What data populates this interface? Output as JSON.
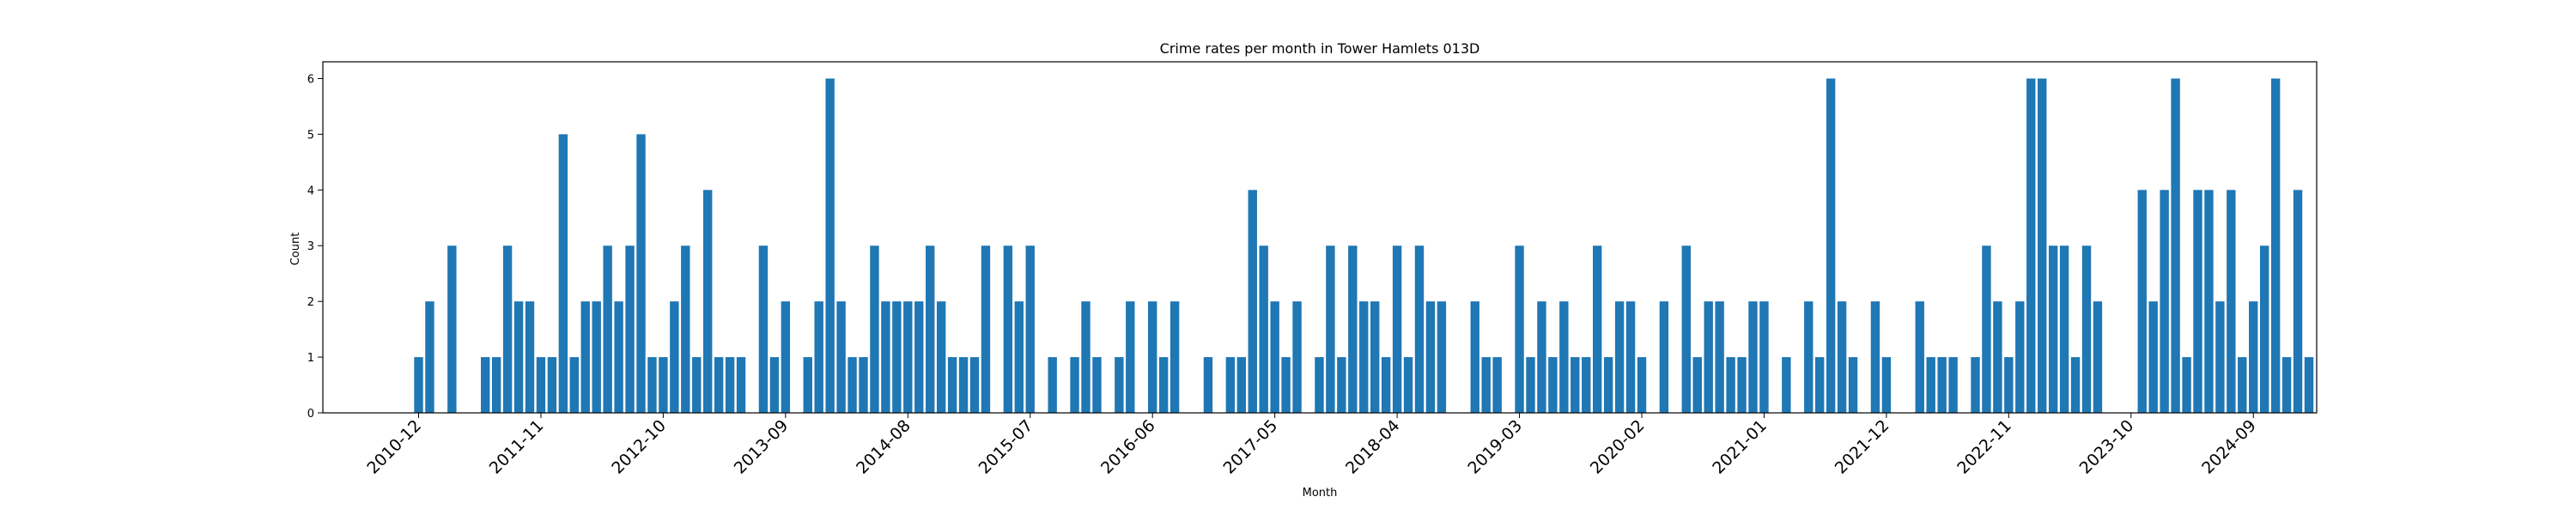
{
  "chart_data": {
    "type": "bar",
    "title": "Crime rates per month in Tower Hamlets 013D",
    "xlabel": "Month",
    "ylabel": "Count",
    "ylim": [
      0,
      6.3
    ],
    "yticks": [
      0,
      1,
      2,
      3,
      4,
      5,
      6
    ],
    "grid": false,
    "bar_color": "#1f77b4",
    "start_month": "2010-12",
    "xticks": [
      "2010-12",
      "2011-11",
      "2012-10",
      "2013-09",
      "2014-08",
      "2015-07",
      "2016-06",
      "2017-05",
      "2018-04",
      "2019-03",
      "2020-02",
      "2021-01",
      "2021-12",
      "2022-11",
      "2023-10",
      "2024-09"
    ],
    "values": [
      1,
      2,
      0,
      3,
      0,
      0,
      1,
      1,
      3,
      2,
      2,
      1,
      1,
      5,
      1,
      2,
      2,
      3,
      2,
      3,
      5,
      1,
      1,
      2,
      3,
      1,
      4,
      1,
      1,
      1,
      0,
      3,
      1,
      2,
      0,
      1,
      2,
      6,
      2,
      1,
      1,
      3,
      2,
      2,
      2,
      2,
      3,
      2,
      1,
      1,
      1,
      3,
      0,
      3,
      2,
      3,
      0,
      1,
      0,
      1,
      2,
      1,
      0,
      1,
      2,
      0,
      2,
      1,
      2,
      0,
      0,
      1,
      0,
      1,
      1,
      4,
      3,
      2,
      1,
      2,
      0,
      1,
      3,
      1,
      3,
      2,
      2,
      1,
      3,
      1,
      3,
      2,
      2,
      0,
      0,
      2,
      1,
      1,
      0,
      3,
      1,
      2,
      1,
      2,
      1,
      1,
      3,
      1,
      2,
      2,
      1,
      0,
      2,
      0,
      3,
      1,
      2,
      2,
      1,
      1,
      2,
      2,
      0,
      1,
      0,
      2,
      1,
      6,
      2,
      1,
      0,
      2,
      1,
      0,
      0,
      2,
      1,
      1,
      1,
      0,
      1,
      3,
      2,
      1,
      2,
      6,
      6,
      3,
      3,
      1,
      3,
      2,
      0,
      0,
      0,
      4,
      2,
      4,
      6,
      1,
      4,
      4,
      2,
      4,
      1,
      2,
      3,
      6,
      1,
      4,
      1
    ]
  }
}
